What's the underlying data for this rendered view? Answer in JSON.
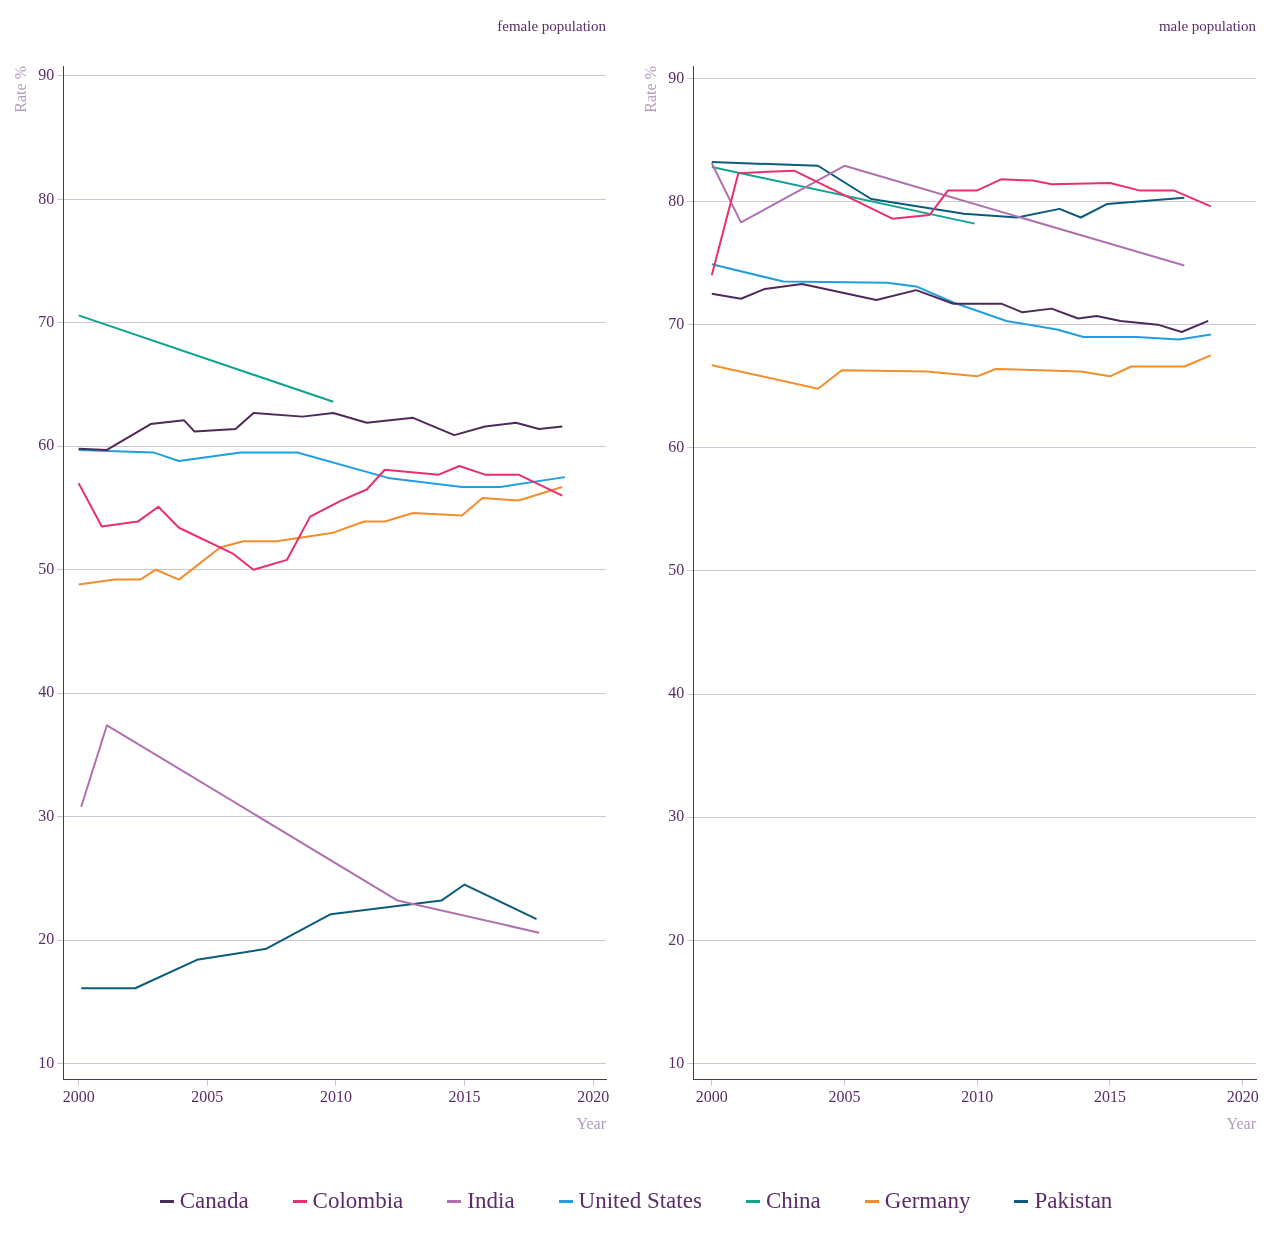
{
  "chart_data": [
    {
      "type": "line",
      "title": "female population",
      "xlabel": "Year",
      "ylabel": "Rate %",
      "xlim": [
        1999.4,
        2020.5
      ],
      "xticks": [
        2000,
        2005,
        2010,
        2015,
        2020
      ],
      "ylim": [
        8.7,
        90.8
      ],
      "yticks": [
        10,
        20,
        30,
        40,
        50,
        60,
        70,
        80,
        90
      ],
      "grid": "y",
      "legend": "bottom",
      "line_style": "solid",
      "marker": "none",
      "series": [
        {
          "name": "Canada",
          "color": "#4e2a5a",
          "x": [
            2000,
            2001.1,
            2002.8,
            2004.1,
            2004.5,
            2006.1,
            2006.8,
            2008.7,
            2009.9,
            2011.2,
            2013,
            2014.6,
            2015.8,
            2017,
            2017.9,
            2018.8
          ],
          "values": [
            59.8,
            59.7,
            61.8,
            62.1,
            61.2,
            61.4,
            62.7,
            62.4,
            62.7,
            61.9,
            62.3,
            60.9,
            61.6,
            61.9,
            61.4,
            61.6
          ]
        },
        {
          "name": "Colombia",
          "color": "#e8306a",
          "x": [
            2000,
            2000.9,
            2002.3,
            2003.1,
            2003.9,
            2006.0,
            2006.8,
            2008.1,
            2009,
            2010.2,
            2011.2,
            2011.9,
            2014.0,
            2014.8,
            2015.8,
            2017.1,
            2018.8
          ],
          "values": [
            57.0,
            53.5,
            53.9,
            55.1,
            53.4,
            51.3,
            50.0,
            50.8,
            54.3,
            55.6,
            56.5,
            58.1,
            57.7,
            58.4,
            57.7,
            57.7,
            56.0
          ]
        },
        {
          "name": "India",
          "color": "#b070b0",
          "x": [
            2000.1,
            2001.1,
            2012.4,
            2017.9
          ],
          "values": [
            30.8,
            37.4,
            23.2,
            20.6
          ]
        },
        {
          "name": "United States",
          "color": "#1f9fe0",
          "x": [
            2000,
            2002.9,
            2003.9,
            2006.3,
            2008.5,
            2012.1,
            2014.9,
            2016.4,
            2018.9
          ],
          "values": [
            59.7,
            59.5,
            58.8,
            59.5,
            59.5,
            57.4,
            56.7,
            56.7,
            57.5
          ]
        },
        {
          "name": "China",
          "color": "#0fa38f",
          "x": [
            2000,
            2009.9
          ],
          "values": [
            70.6,
            63.6
          ]
        },
        {
          "name": "Germany",
          "color": "#f28e2b",
          "x": [
            2000,
            2001.4,
            2002.4,
            2003.0,
            2003.9,
            2005.5,
            2006.4,
            2007.7,
            2009.9,
            2011.1,
            2011.9,
            2013.0,
            2014.9,
            2015.7,
            2017.1,
            2018.8
          ],
          "values": [
            48.8,
            49.2,
            49.2,
            50.0,
            49.2,
            51.8,
            52.3,
            52.3,
            53.0,
            53.9,
            53.9,
            54.6,
            54.4,
            55.8,
            55.6,
            56.7
          ]
        },
        {
          "name": "Pakistan",
          "color": "#0b5b7a",
          "x": [
            2000.1,
            2002.2,
            2004.6,
            2007.3,
            2009.8,
            2014.1,
            2015.0,
            2017.8
          ],
          "values": [
            16.1,
            16.1,
            18.4,
            19.3,
            22.1,
            23.2,
            24.5,
            21.7
          ]
        }
      ]
    },
    {
      "type": "line",
      "title": "male population",
      "xlabel": "Year",
      "ylabel": "Rate %",
      "xlim": [
        1999.3,
        2020.5
      ],
      "xticks": [
        2000,
        2005,
        2010,
        2015,
        2020
      ],
      "ylim": [
        8.7,
        91
      ],
      "yticks": [
        10,
        20,
        30,
        40,
        50,
        60,
        70,
        80,
        90
      ],
      "grid": "y",
      "legend": "bottom",
      "line_style": "solid",
      "marker": "none",
      "series": [
        {
          "name": "Canada",
          "color": "#4e2a5a",
          "x": [
            2000,
            2001.1,
            2002.0,
            2003.4,
            2006.2,
            2007.7,
            2009.1,
            2010.9,
            2011.7,
            2012.8,
            2013.8,
            2014.5,
            2015.4,
            2016.8,
            2017.7,
            2018.7
          ],
          "values": [
            72.5,
            72.1,
            72.9,
            73.3,
            72.0,
            72.8,
            71.7,
            71.7,
            71.0,
            71.3,
            70.5,
            70.7,
            70.3,
            70.0,
            69.4,
            70.3
          ]
        },
        {
          "name": "Colombia",
          "color": "#e8306a",
          "x": [
            2000,
            2001,
            2003.1,
            2006.8,
            2008.2,
            2008.9,
            2010.0,
            2010.9,
            2012.1,
            2012.8,
            2015.0,
            2016.1,
            2017.4,
            2018.8
          ],
          "values": [
            74.0,
            82.3,
            82.5,
            78.6,
            78.9,
            80.9,
            80.9,
            81.8,
            81.7,
            81.4,
            81.5,
            80.9,
            80.9,
            79.6
          ]
        },
        {
          "name": "India",
          "color": "#b070b0",
          "x": [
            2000,
            2001.1,
            2005.0,
            2017.8
          ],
          "values": [
            83.1,
            78.3,
            82.9,
            74.8
          ]
        },
        {
          "name": "United States",
          "color": "#1f9fe0",
          "x": [
            2000,
            2002.7,
            2006.6,
            2007.7,
            2009.1,
            2011.1,
            2013,
            2014,
            2016,
            2017.6,
            2018.8
          ],
          "values": [
            74.9,
            73.5,
            73.4,
            73.1,
            71.8,
            70.3,
            69.6,
            69.0,
            69.0,
            68.8,
            69.2
          ]
        },
        {
          "name": "China",
          "color": "#0fa38f",
          "x": [
            2000,
            2009.9
          ],
          "values": [
            82.8,
            78.2
          ]
        },
        {
          "name": "Germany",
          "color": "#f28e2b",
          "x": [
            2000,
            2004.0,
            2004.9,
            2008.1,
            2010,
            2010.7,
            2013.9,
            2015,
            2015.8,
            2017.8,
            2018.8
          ],
          "values": [
            66.7,
            64.8,
            66.3,
            66.2,
            65.8,
            66.4,
            66.2,
            65.8,
            66.6,
            66.6,
            67.5
          ]
        },
        {
          "name": "Pakistan",
          "color": "#0b5b7a",
          "x": [
            2000,
            2004.0,
            2006.0,
            2009.5,
            2011.5,
            2013.1,
            2013.9,
            2014.9,
            2017.8
          ],
          "values": [
            83.2,
            82.9,
            80.2,
            79.0,
            78.7,
            79.4,
            78.7,
            79.8,
            80.3
          ]
        }
      ]
    }
  ]
}
